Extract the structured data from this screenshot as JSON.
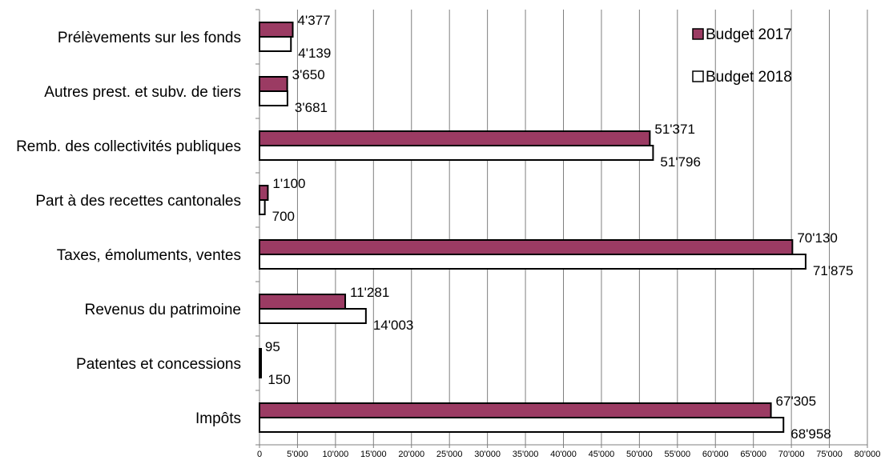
{
  "chart_data": {
    "type": "bar",
    "orientation": "horizontal",
    "categories": [
      "Prélèvements sur les fonds",
      "Autres prest. et subv. de tiers",
      "Remb. des collectivités publiques",
      "Part à des recettes cantonales",
      "Taxes, émoluments, ventes",
      "Revenus du patrimoine",
      "Patentes et concessions",
      "Impôts"
    ],
    "series": [
      {
        "name": "Budget 2017",
        "color": "#9b3b63",
        "values": [
          4377,
          3650,
          51371,
          1100,
          70130,
          11281,
          95,
          67305
        ],
        "labels": [
          "4'377",
          "3'650",
          "51'371",
          "1'100",
          "70'130",
          "11'281",
          "95",
          "67'305"
        ]
      },
      {
        "name": "Budget 2018",
        "color": "#ffffff",
        "values": [
          4139,
          3681,
          51796,
          700,
          71875,
          14003,
          150,
          68958
        ],
        "labels": [
          "4'139",
          "3'681",
          "51'796",
          "700",
          "71'875",
          "14'003",
          "150",
          "68'958"
        ]
      }
    ],
    "xlim": [
      0,
      80000
    ],
    "xticks": [
      "0",
      "5'000",
      "10'000",
      "15'000",
      "20'000",
      "25'000",
      "30'000",
      "35'000",
      "40'000",
      "45'000",
      "50'000",
      "55'000",
      "60'000",
      "65'000",
      "70'000",
      "75'000",
      "80'000"
    ],
    "grid": true,
    "legend": "top-right",
    "title": "",
    "xlabel": "",
    "ylabel": ""
  }
}
